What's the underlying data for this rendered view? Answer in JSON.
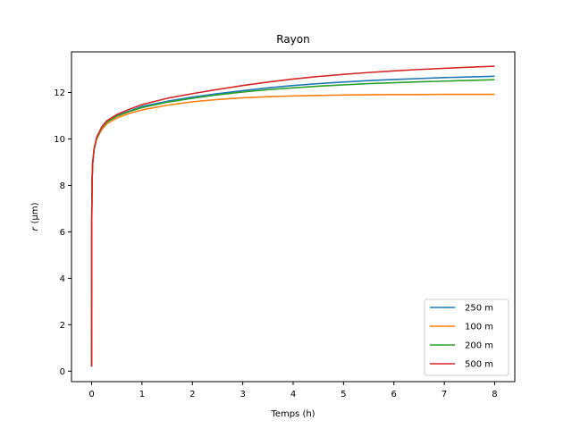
{
  "chart_data": {
    "type": "line",
    "title": "Rayon",
    "xlabel": "Temps (h)",
    "ylabel_var": "r",
    "ylabel_unit": "(μm)",
    "xlim": [
      -0.4,
      8.4
    ],
    "ylim": [
      -0.45,
      13.75
    ],
    "xticks": [
      0,
      1,
      2,
      3,
      4,
      5,
      6,
      7,
      8
    ],
    "yticks": [
      0,
      2,
      4,
      6,
      8,
      10,
      12
    ],
    "grid": false,
    "legend_position": "bottom-right",
    "x": [
      0,
      0.002,
      0.01,
      0.02,
      0.05,
      0.1,
      0.2,
      0.3,
      0.5,
      0.75,
      1,
      1.5,
      2,
      2.5,
      3,
      3.5,
      4,
      4.5,
      5,
      5.5,
      6,
      6.5,
      7,
      7.5,
      8
    ],
    "series": [
      {
        "name": "250 m",
        "color": "#1f77b4",
        "values": [
          0.2,
          6.5,
          8.3,
          8.95,
          9.6,
          10.05,
          10.5,
          10.75,
          11.0,
          11.2,
          11.4,
          11.62,
          11.8,
          11.95,
          12.08,
          12.2,
          12.3,
          12.38,
          12.45,
          12.51,
          12.56,
          12.6,
          12.64,
          12.67,
          12.7
        ]
      },
      {
        "name": "100 m",
        "color": "#ff7f0e",
        "values": [
          0.2,
          6.5,
          8.3,
          8.95,
          9.55,
          10.0,
          10.4,
          10.65,
          10.9,
          11.1,
          11.25,
          11.45,
          11.6,
          11.7,
          11.77,
          11.82,
          11.85,
          11.87,
          11.89,
          11.9,
          11.91,
          11.91,
          11.92,
          11.92,
          11.92
        ]
      },
      {
        "name": "200 m",
        "color": "#2ca02c",
        "values": [
          0.2,
          6.5,
          8.3,
          8.95,
          9.58,
          10.03,
          10.48,
          10.72,
          10.98,
          11.18,
          11.35,
          11.58,
          11.75,
          11.9,
          12.02,
          12.12,
          12.2,
          12.27,
          12.33,
          12.38,
          12.42,
          12.46,
          12.49,
          12.52,
          12.55
        ]
      },
      {
        "name": "500 m",
        "color": "#d62728",
        "values": [
          0.2,
          6.5,
          8.3,
          8.95,
          9.6,
          10.07,
          10.52,
          10.78,
          11.05,
          11.28,
          11.48,
          11.75,
          11.95,
          12.13,
          12.3,
          12.45,
          12.58,
          12.69,
          12.78,
          12.86,
          12.93,
          12.99,
          13.04,
          13.09,
          13.13
        ]
      }
    ]
  }
}
